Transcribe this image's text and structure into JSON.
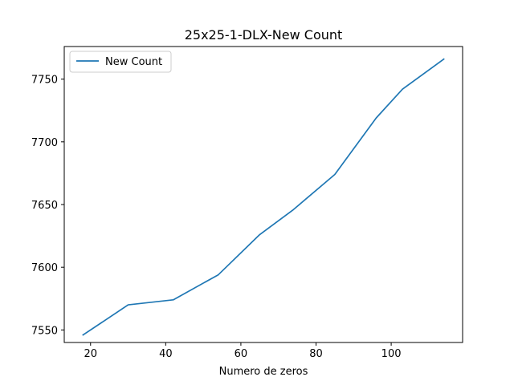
{
  "chart_data": {
    "type": "line",
    "title": "25x25-1-DLX-New Count",
    "xlabel": "Numero de zeros",
    "ylabel": "",
    "xlim": [
      13,
      119
    ],
    "ylim": [
      7540,
      7776
    ],
    "xticks": [
      20,
      40,
      60,
      80,
      100
    ],
    "yticks": [
      7550,
      7600,
      7650,
      7700,
      7750
    ],
    "grid": false,
    "legend_position": "upper-left",
    "series": [
      {
        "name": "New Count",
        "color": "#1f77b4",
        "x": [
          18,
          30,
          42,
          54,
          65,
          74,
          85,
          96,
          103,
          114
        ],
        "y": [
          7546,
          7570,
          7574,
          7594,
          7626,
          7646,
          7674,
          7719,
          7742,
          7766
        ]
      }
    ]
  }
}
